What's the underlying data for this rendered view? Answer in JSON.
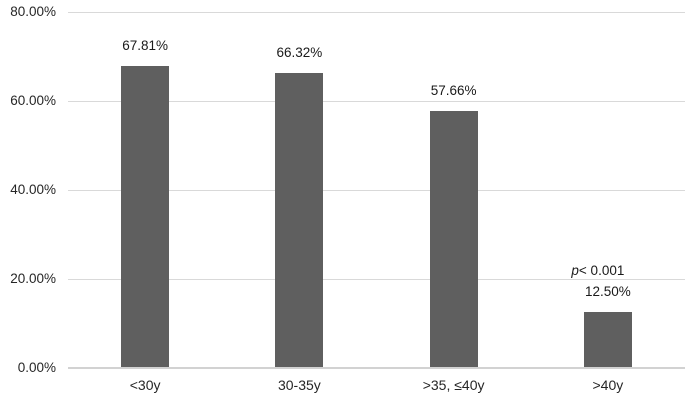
{
  "chart_data": {
    "type": "bar",
    "title": "",
    "xlabel": "",
    "ylabel": "",
    "categories": [
      "<30y",
      "30-35y",
      ">35, ≤40y",
      ">40y"
    ],
    "values": [
      67.81,
      66.32,
      57.66,
      12.5
    ],
    "value_labels": [
      "67.81%",
      "66.32%",
      "57.66%",
      "12.50%"
    ],
    "y_ticks": [
      "80.00%",
      "60.00%",
      "40.00%",
      "20.00%",
      "0.00%"
    ],
    "y_tick_values": [
      80,
      60,
      40,
      20,
      0
    ],
    "ylim": [
      0,
      80
    ],
    "grid": true,
    "legend": false,
    "annotation": {
      "italic_text": "p",
      "text": "< 0.001",
      "bar_index": 3
    },
    "colors": {
      "bar": "#5f5f5f",
      "gridline": "#d9d9d9",
      "axis_line": "#d2d2d2",
      "tick_text": "#262626",
      "label_text": "#1a1a1a",
      "background": "#ffffff"
    }
  }
}
